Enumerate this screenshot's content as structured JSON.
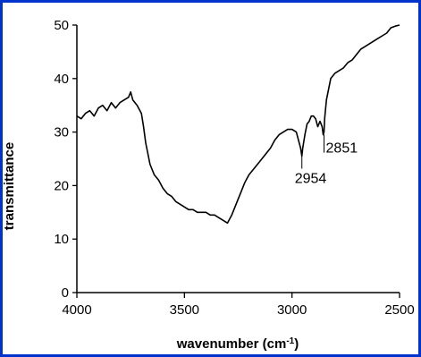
{
  "chart_data": {
    "type": "line",
    "title": "",
    "xlabel": "wavenumber (cm-1)",
    "xlabel_parts": {
      "main": "wavenumber (cm",
      "sup": "-1",
      "close": ")"
    },
    "ylabel": "transmittance",
    "xlim": [
      4000,
      2500
    ],
    "ylim": [
      0,
      50
    ],
    "x_reversed": true,
    "x_ticks": [
      4000,
      3500,
      3000,
      2500
    ],
    "x_tick_labels": [
      "4000",
      "3500",
      "3000",
      "2500"
    ],
    "y_ticks": [
      0,
      10,
      20,
      30,
      40,
      50
    ],
    "y_tick_labels": [
      "0",
      "10",
      "20",
      "30",
      "40",
      "50"
    ],
    "grid": false,
    "legend": "none",
    "line_color": "#000000",
    "frame_color": "#0033cc",
    "series": [
      {
        "x": [
          4000,
          3980,
          3960,
          3940,
          3920,
          3900,
          3880,
          3860,
          3840,
          3820,
          3800,
          3780,
          3760,
          3750,
          3740,
          3720,
          3700,
          3690,
          3680,
          3670,
          3660,
          3650,
          3640,
          3620,
          3600,
          3580,
          3560,
          3540,
          3520,
          3500,
          3480,
          3460,
          3440,
          3420,
          3400,
          3380,
          3360,
          3340,
          3320,
          3300,
          3280,
          3260,
          3240,
          3220,
          3200,
          3180,
          3160,
          3140,
          3120,
          3100,
          3080,
          3060,
          3040,
          3020,
          3000,
          2980,
          2970,
          2960,
          2954,
          2950,
          2940,
          2930,
          2920,
          2910,
          2900,
          2890,
          2880,
          2870,
          2860,
          2855,
          2851,
          2848,
          2840,
          2830,
          2820,
          2800,
          2780,
          2760,
          2740,
          2720,
          2700,
          2680,
          2660,
          2640,
          2620,
          2600,
          2580,
          2560,
          2540,
          2520,
          2500
        ],
        "y": [
          33,
          32.5,
          33.5,
          34,
          33,
          34.5,
          35,
          34,
          35.5,
          34.5,
          35.5,
          36,
          36.5,
          37.5,
          36,
          35,
          33.5,
          31,
          28,
          26,
          24,
          23,
          22,
          21,
          19.5,
          18.5,
          18,
          17,
          16.5,
          16,
          15.5,
          15.5,
          15,
          15,
          15,
          14.5,
          14.5,
          14,
          13.5,
          13,
          14.5,
          16.5,
          18.5,
          20.5,
          22,
          23,
          24,
          25,
          26,
          27,
          28.5,
          29.5,
          30,
          30.5,
          30.5,
          30,
          28.5,
          27,
          25.5,
          27,
          29.5,
          31.5,
          32,
          33,
          33,
          32.5,
          31,
          32,
          31,
          29.5,
          30,
          32.5,
          36,
          38,
          40,
          41,
          41.5,
          42,
          43,
          43.5,
          44.5,
          45.5,
          46,
          46.5,
          47,
          47.5,
          48,
          48.5,
          49.5,
          49.8,
          50
        ]
      }
    ],
    "annotations": [
      {
        "text": "2954",
        "x": 2954,
        "y": 25.5
      },
      {
        "text": "2851",
        "x": 2851,
        "y": 29.5
      }
    ]
  }
}
